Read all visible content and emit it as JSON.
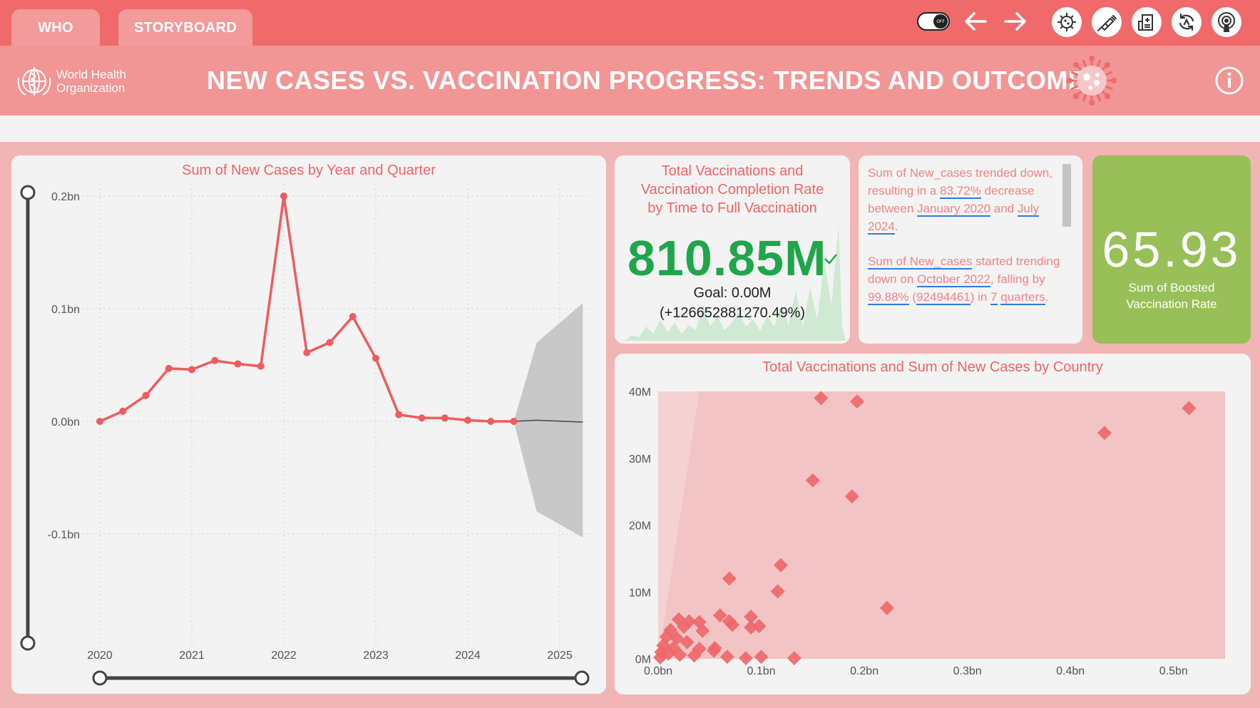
{
  "tabs": [
    "WHO",
    "STORYBOARD"
  ],
  "toggle": {
    "label": "OFF"
  },
  "header": {
    "logo_line1": "World Health",
    "logo_line2": "Organization",
    "title": "NEW CASES VS. VACCINATION PROGRESS: TRENDS AND OUTCOMES"
  },
  "colors": {
    "accent": "#f06a6c",
    "kpi_green": "#1fa64a",
    "card_green": "#99bf58",
    "series": "#ef5b5e",
    "forecast": "#c8c8c8"
  },
  "nav_icons": [
    "toggle-icon",
    "back-arrow-icon",
    "forward-arrow-icon",
    "virus-icon",
    "syringe-icon",
    "hospital-icon",
    "refresh-icon",
    "podcast-icon"
  ],
  "kpi": {
    "title_l1": "Total Vaccinations and",
    "title_l2": "Vaccination Completion Rate",
    "title_l3": "by Time to Full Vaccination",
    "value": "810.85M",
    "goal": "Goal: 0.00M",
    "delta": "(+12665288127‌0.49%)"
  },
  "narrative": {
    "p1": [
      "Sum of New_cases trended",
      "down, resulting in a ",
      "83.72%",
      "decrease between ",
      "January 2020",
      "and ",
      "July 2024",
      "."
    ],
    "p2": [
      "Sum of New_cases",
      " started",
      "trending down on ",
      "October 2022",
      ",",
      "falling by ",
      "99.88%",
      " (",
      "92494461",
      ") in ",
      "7",
      "quarters",
      "."
    ]
  },
  "boosted": {
    "value": "65.93",
    "label_l1": "Sum of Boosted",
    "label_l2": "Vaccination Rate"
  },
  "chart_data": [
    {
      "type": "line",
      "title": "Sum of New Cases by Year and Quarter",
      "x_ticks": [
        "2020",
        "2021",
        "2022",
        "2023",
        "2024",
        "2025"
      ],
      "y_ticks": [
        "0.2bn",
        "0.1bn",
        "0.0bn",
        "-0.1bn"
      ],
      "ylim": [
        -0.15,
        0.24
      ],
      "x": [
        2020.0,
        2020.25,
        2020.5,
        2020.75,
        2021.0,
        2021.25,
        2021.5,
        2021.75,
        2022.0,
        2022.25,
        2022.5,
        2022.75,
        2023.0,
        2023.25,
        2023.5,
        2023.75,
        2024.0,
        2024.25,
        2024.5
      ],
      "values": [
        0.0,
        0.009,
        0.023,
        0.047,
        0.046,
        0.054,
        0.051,
        0.049,
        0.2,
        0.061,
        0.07,
        0.093,
        0.056,
        0.006,
        0.003,
        0.003,
        0.001,
        0.0,
        0.0
      ],
      "forecast": {
        "x": [
          2024.5,
          2025.25
        ],
        "mean": [
          0.0,
          0.0
        ],
        "upper_end": 0.105,
        "lower_end": -0.103
      }
    },
    {
      "type": "scatter",
      "title": "Total Vaccinations and Sum of New Cases by Country",
      "x_ticks": [
        "0.0bn",
        "0.1bn",
        "0.2bn",
        "0.3bn",
        "0.4bn",
        "0.5bn"
      ],
      "y_ticks": [
        "40M",
        "30M",
        "20M",
        "10M",
        "0M"
      ],
      "xlim": [
        0,
        0.55
      ],
      "ylim": [
        0,
        40
      ],
      "points": [
        [
          0.158,
          39
        ],
        [
          0.193,
          38.5
        ],
        [
          0.515,
          37.5
        ],
        [
          0.433,
          33.8
        ],
        [
          0.15,
          26.7
        ],
        [
          0.188,
          24.3
        ],
        [
          0.119,
          14.0
        ],
        [
          0.069,
          12.0
        ],
        [
          0.116,
          10.1
        ],
        [
          0.222,
          7.6
        ],
        [
          0.06,
          6.5
        ],
        [
          0.09,
          6.3
        ],
        [
          0.069,
          5.6
        ],
        [
          0.072,
          5.1
        ],
        [
          0.09,
          4.7
        ],
        [
          0.098,
          4.9
        ],
        [
          0.02,
          5.9
        ],
        [
          0.03,
          5.6
        ],
        [
          0.04,
          5.5
        ],
        [
          0.025,
          4.8
        ],
        [
          0.012,
          4.3
        ],
        [
          0.043,
          4.2
        ],
        [
          0.008,
          3.3
        ],
        [
          0.018,
          3.1
        ],
        [
          0.028,
          2.5
        ],
        [
          0.005,
          2.0
        ],
        [
          0.015,
          1.6
        ],
        [
          0.04,
          1.5
        ],
        [
          0.054,
          1.2
        ],
        [
          0.055,
          1.6
        ],
        [
          0.003,
          1.0
        ],
        [
          0.01,
          0.8
        ],
        [
          0.021,
          0.6
        ],
        [
          0.035,
          0.5
        ],
        [
          0.067,
          0.3
        ],
        [
          0.085,
          0.1
        ],
        [
          0.1,
          0.3
        ],
        [
          0.132,
          0.1
        ],
        [
          0.002,
          0.2
        ]
      ]
    }
  ]
}
